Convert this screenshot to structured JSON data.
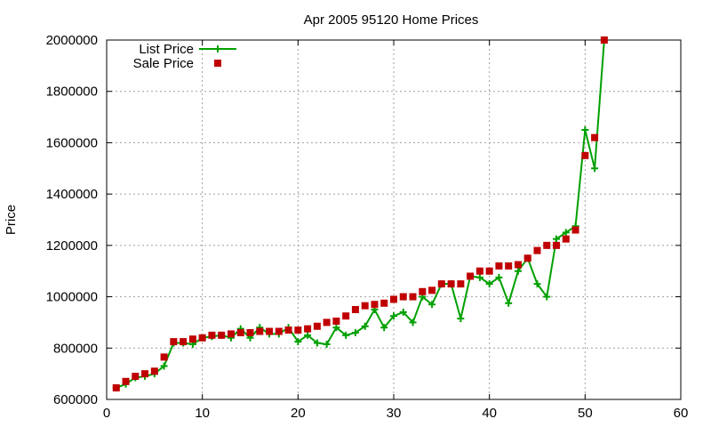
{
  "chart_data": {
    "type": "line",
    "title": "Apr 2005 95120 Home Prices",
    "xlabel": "",
    "ylabel": "Price",
    "xlim": [
      0,
      60
    ],
    "ylim": [
      600000,
      2000000
    ],
    "xticks": [
      0,
      10,
      20,
      30,
      40,
      50,
      60
    ],
    "yticks": [
      600000,
      800000,
      1000000,
      1200000,
      1400000,
      1600000,
      1800000,
      2000000
    ],
    "grid": true,
    "legend_position": "top-left",
    "series": [
      {
        "name": "List Price",
        "style": "line-with-plus-markers",
        "color": "#00a000",
        "x": [
          1,
          2,
          3,
          4,
          5,
          6,
          7,
          8,
          9,
          10,
          11,
          12,
          13,
          14,
          15,
          16,
          17,
          18,
          19,
          20,
          21,
          22,
          23,
          24,
          25,
          26,
          27,
          28,
          29,
          30,
          31,
          32,
          33,
          34,
          35,
          36,
          37,
          38,
          39,
          40,
          41,
          42,
          43,
          44,
          45,
          46,
          47,
          48,
          49,
          50,
          51,
          52
        ],
        "y": [
          645000,
          660000,
          685000,
          690000,
          700000,
          730000,
          820000,
          820000,
          815000,
          840000,
          845000,
          850000,
          840000,
          875000,
          840000,
          880000,
          855000,
          855000,
          880000,
          825000,
          850000,
          820000,
          815000,
          880000,
          850000,
          860000,
          885000,
          950000,
          880000,
          925000,
          940000,
          900000,
          1000000,
          970000,
          1050000,
          1050000,
          915000,
          1080000,
          1075000,
          1050000,
          1075000,
          975000,
          1100000,
          1150000,
          1050000,
          1000000,
          1225000,
          1250000,
          1275000,
          1650000,
          1500000,
          2000000
        ]
      },
      {
        "name": "Sale Price",
        "style": "square-markers",
        "color": "#c00000",
        "x": [
          1,
          2,
          3,
          4,
          5,
          6,
          7,
          8,
          9,
          10,
          11,
          12,
          13,
          14,
          15,
          16,
          17,
          18,
          19,
          20,
          21,
          22,
          23,
          24,
          25,
          26,
          27,
          28,
          29,
          30,
          31,
          32,
          33,
          34,
          35,
          36,
          37,
          38,
          39,
          40,
          41,
          42,
          43,
          44,
          45,
          46,
          47,
          48,
          49,
          50,
          51,
          52
        ],
        "y": [
          645000,
          670000,
          690000,
          700000,
          710000,
          765000,
          825000,
          825000,
          835000,
          840000,
          850000,
          850000,
          855000,
          860000,
          860000,
          865000,
          865000,
          865000,
          870000,
          870000,
          875000,
          885000,
          900000,
          905000,
          925000,
          950000,
          965000,
          970000,
          975000,
          990000,
          1000000,
          1000000,
          1020000,
          1025000,
          1050000,
          1050000,
          1050000,
          1080000,
          1100000,
          1100000,
          1120000,
          1120000,
          1125000,
          1150000,
          1180000,
          1200000,
          1200000,
          1225000,
          1260000,
          1550000,
          1620000,
          2000000
        ]
      }
    ]
  }
}
